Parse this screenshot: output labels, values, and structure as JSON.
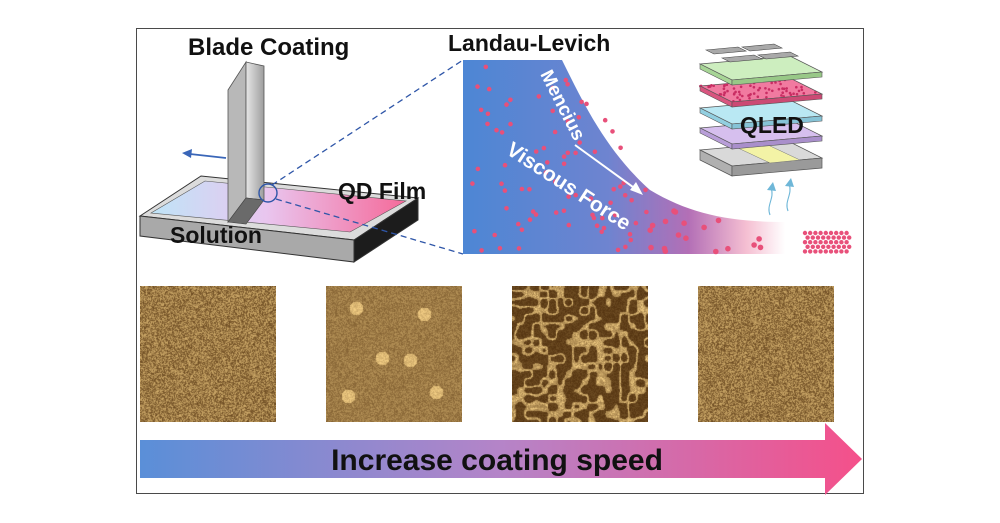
{
  "labels": {
    "blade_coating": "Blade Coating",
    "landau_levich": "Landau-Levich",
    "solution": "Solution",
    "qd_film": "QD Film",
    "mencius": "Mencius",
    "viscous_force": "Viscous Force",
    "qled": "QLED"
  },
  "arrow_label": "Increase coating speed",
  "afm_panels": [
    {
      "name": "afm-panel-1",
      "style": "fine"
    },
    {
      "name": "afm-panel-2",
      "style": "islands"
    },
    {
      "name": "afm-panel-3",
      "style": "network"
    },
    {
      "name": "afm-panel-4",
      "style": "fine"
    }
  ],
  "colors": {
    "blue": "#4d86d4",
    "pink": "#f0507f",
    "dot": "#e8507a",
    "afm_dark": "#4a2a08",
    "afm_light": "#f3d28a"
  }
}
